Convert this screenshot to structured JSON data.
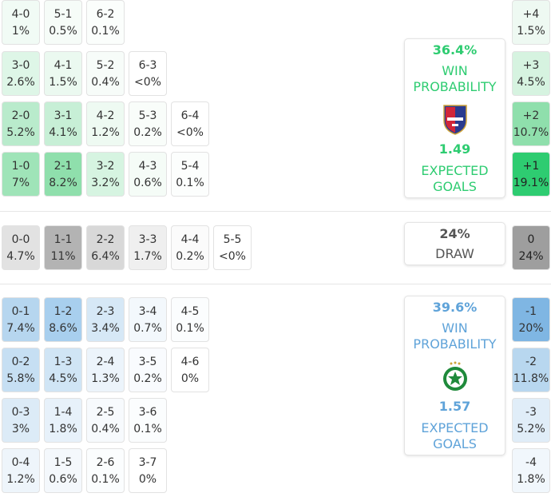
{
  "home_rows": [
    [
      {
        "s": "4-0",
        "p": "1%",
        "c": "#f1fbf5"
      },
      {
        "s": "5-1",
        "p": "0.5%",
        "c": "#f6fcf8"
      },
      {
        "s": "6-2",
        "p": "0.1%",
        "c": "#fbfefc"
      }
    ],
    [
      {
        "s": "3-0",
        "p": "2.6%",
        "c": "#def6e7"
      },
      {
        "s": "4-1",
        "p": "1.5%",
        "c": "#ebf9f0"
      },
      {
        "s": "5-2",
        "p": "0.4%",
        "c": "#f7fcf9"
      },
      {
        "s": "6-3",
        "p": "<0%",
        "c": "#ffffff"
      }
    ],
    [
      {
        "s": "2-0",
        "p": "5.2%",
        "c": "#b9ebcc"
      },
      {
        "s": "3-1",
        "p": "4.1%",
        "c": "#c7efd6"
      },
      {
        "s": "4-2",
        "p": "1.2%",
        "c": "#eefaf2"
      },
      {
        "s": "5-3",
        "p": "0.2%",
        "c": "#f9fdfa"
      },
      {
        "s": "6-4",
        "p": "<0%",
        "c": "#ffffff"
      }
    ],
    [
      {
        "s": "1-0",
        "p": "7%",
        "c": "#9fe4b8"
      },
      {
        "s": "2-1",
        "p": "8.2%",
        "c": "#8fdfac"
      },
      {
        "s": "3-2",
        "p": "3.2%",
        "c": "#d6f4e1"
      },
      {
        "s": "4-3",
        "p": "0.6%",
        "c": "#f5fcf7"
      },
      {
        "s": "5-4",
        "p": "0.1%",
        "c": "#fcfefd"
      }
    ]
  ],
  "draw_row": [
    {
      "s": "0-0",
      "p": "4.7%",
      "c": "#e2e2e2"
    },
    {
      "s": "1-1",
      "p": "11%",
      "c": "#b3b3b3"
    },
    {
      "s": "2-2",
      "p": "6.4%",
      "c": "#d8d8d8"
    },
    {
      "s": "3-3",
      "p": "1.7%",
      "c": "#efefef"
    },
    {
      "s": "4-4",
      "p": "0.2%",
      "c": "#fbfbfb"
    },
    {
      "s": "5-5",
      "p": "<0%",
      "c": "#ffffff"
    }
  ],
  "away_rows": [
    [
      {
        "s": "0-1",
        "p": "7.4%",
        "c": "#b6d6ef"
      },
      {
        "s": "1-2",
        "p": "8.6%",
        "c": "#a8cfee"
      },
      {
        "s": "2-3",
        "p": "3.4%",
        "c": "#d6e8f6"
      },
      {
        "s": "3-4",
        "p": "0.7%",
        "c": "#f3f8fc"
      },
      {
        "s": "4-5",
        "p": "0.1%",
        "c": "#fbfdfe"
      }
    ],
    [
      {
        "s": "0-2",
        "p": "5.8%",
        "c": "#c6dff3"
      },
      {
        "s": "1-3",
        "p": "4.5%",
        "c": "#d0e5f5"
      },
      {
        "s": "2-4",
        "p": "1.3%",
        "c": "#ecf4fb"
      },
      {
        "s": "3-5",
        "p": "0.2%",
        "c": "#f9fbfe"
      },
      {
        "s": "4-6",
        "p": "0%",
        "c": "#ffffff"
      }
    ],
    [
      {
        "s": "0-3",
        "p": "3%",
        "c": "#dcebf7"
      },
      {
        "s": "1-4",
        "p": "1.8%",
        "c": "#e7f1fa"
      },
      {
        "s": "2-5",
        "p": "0.4%",
        "c": "#f7fafd"
      },
      {
        "s": "3-6",
        "p": "0.1%",
        "c": "#fbfdfe"
      }
    ],
    [
      {
        "s": "0-4",
        "p": "1.2%",
        "c": "#eef5fb"
      },
      {
        "s": "1-5",
        "p": "0.6%",
        "c": "#f4f8fc"
      },
      {
        "s": "2-6",
        "p": "0.1%",
        "c": "#fbfdfe"
      },
      {
        "s": "3-7",
        "p": "0%",
        "c": "#ffffff"
      }
    ]
  ],
  "margins_home": [
    {
      "s": "+4",
      "p": "1.5%",
      "c": "#eef9f2"
    },
    {
      "s": "+3",
      "p": "4.5%",
      "c": "#d6f3e0"
    },
    {
      "s": "+2",
      "p": "10.7%",
      "c": "#8fdfac"
    },
    {
      "s": "+1",
      "p": "19.1%",
      "c": "#2ecc71"
    }
  ],
  "margin_draw": {
    "s": "0",
    "p": "24%",
    "c": "#9e9e9e"
  },
  "margins_away": [
    {
      "s": "-1",
      "p": "20%",
      "c": "#7fb6e3"
    },
    {
      "s": "-2",
      "p": "11.8%",
      "c": "#b8d7ef"
    },
    {
      "s": "-3",
      "p": "5.2%",
      "c": "#e0edf8"
    },
    {
      "s": "-4",
      "p": "1.8%",
      "c": "#f1f7fc"
    }
  ],
  "home_panel": {
    "win_pct": "36.4%",
    "win_label": "WIN PROBABILITY",
    "xg": "1.49",
    "xg_label": "EXPECTED GOALS",
    "color": "#2ecc71",
    "crest": "shield-crest-icon"
  },
  "draw_panel": {
    "pct": "24%",
    "label": "DRAW",
    "color": "#555555"
  },
  "away_panel": {
    "win_pct": "39.6%",
    "win_label": "WIN PROBABILITY",
    "xg": "1.57",
    "xg_label": "EXPECTED GOALS",
    "color": "#5fa3d9",
    "crest": "round-crest-icon"
  }
}
